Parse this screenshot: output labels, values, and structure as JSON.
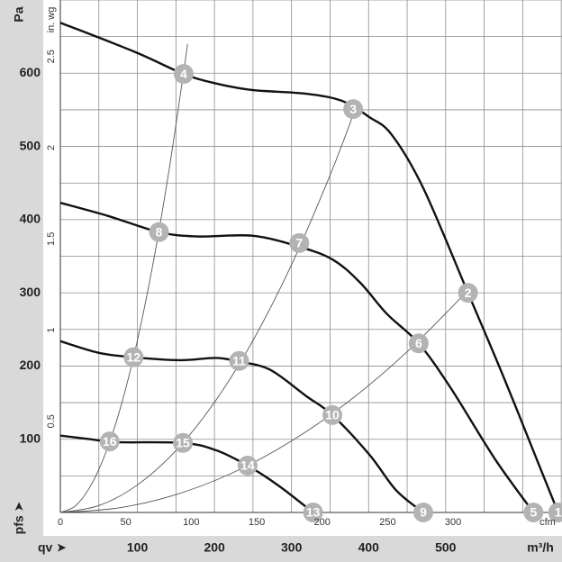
{
  "chart_data": {
    "type": "line",
    "y_label": "Pa",
    "y_symbol": "pfs ➤",
    "x_symbol": "qv ➤",
    "x_label": "m³/h",
    "y2_label": "in. wg",
    "x2_label": "cfm",
    "xlim": [
      0,
      651
    ],
    "ylim": [
      0,
      700
    ],
    "x2lim": [
      0,
      383.2
    ],
    "y2lim": [
      0,
      2.8102
    ],
    "xticks": [
      100,
      200,
      300,
      400,
      500
    ],
    "yticks": [
      100,
      200,
      300,
      400,
      500,
      600
    ],
    "x2ticks": [
      0,
      50,
      100,
      150,
      200,
      250,
      300
    ],
    "y2ticks": [
      0.5,
      1,
      1.5,
      2,
      2.5
    ],
    "xgrid": [
      0,
      50,
      100,
      150,
      200,
      250,
      300,
      350,
      400,
      450,
      500,
      550,
      600,
      650
    ],
    "ygrid": [
      0,
      50,
      100,
      150,
      200,
      250,
      300,
      350,
      400,
      450,
      500,
      550,
      600,
      650,
      700
    ],
    "grid": true,
    "fan_curves": [
      {
        "color": "#111111",
        "x": [
          0,
          97,
          160,
          202,
          249,
          319,
          366,
          401,
          430,
          471,
          529,
          576,
          623,
          646
        ],
        "y": [
          669,
          629,
          599,
          586,
          577,
          572,
          562,
          540,
          516,
          443,
          300,
          183,
          60,
          0
        ]
      },
      {
        "color": "#111111",
        "x": [
          0,
          62,
          128,
          179,
          249,
          310,
          354,
          389,
          424,
          465,
          506,
          564,
          614
        ],
        "y": [
          423,
          405,
          383,
          377,
          378,
          363,
          345,
          314,
          271,
          231,
          171,
          73,
          0
        ]
      },
      {
        "color": "#111111",
        "x": [
          0,
          50,
          95,
          155,
          202,
          232,
          272,
          319,
          353,
          401,
          436,
          471
        ],
        "y": [
          234,
          218,
          212,
          208,
          211,
          206,
          195,
          159,
          133,
          79,
          30,
          0
        ]
      },
      {
        "color": "#111111",
        "x": [
          0,
          39,
          74,
          159,
          202,
          243,
          284,
          328
        ],
        "y": [
          105,
          100,
          96,
          95,
          85,
          64,
          36,
          0
        ]
      }
    ],
    "system_curves": [
      {
        "color": "#555555",
        "x": [
          0,
          20,
          40,
          60,
          80,
          100,
          120,
          140,
          160,
          165
        ],
        "y": [
          0,
          9.4,
          37.6,
          84.6,
          150.4,
          235,
          338.4,
          460.6,
          601.6,
          640
        ]
      },
      {
        "color": "#555555",
        "x": [
          0,
          50,
          100,
          150,
          200,
          250,
          300,
          350,
          380
        ],
        "y": [
          0,
          9.4,
          37.6,
          84.6,
          150.4,
          235,
          338.4,
          460.6,
          543
        ]
      },
      {
        "color": "#555555",
        "x": [
          0,
          75,
          150,
          225,
          300,
          375,
          450,
          529
        ],
        "y": [
          0,
          6.1,
          24.4,
          54.9,
          97.6,
          152.4,
          219.5,
          303.3
        ]
      }
    ],
    "marker_color": "#b3b3b3",
    "markers": [
      {
        "label": "1",
        "x": 646,
        "y": 0
      },
      {
        "label": "2",
        "x": 529,
        "y": 300
      },
      {
        "label": "3",
        "x": 380,
        "y": 551
      },
      {
        "label": "4",
        "x": 160,
        "y": 599
      },
      {
        "label": "5",
        "x": 614,
        "y": 0
      },
      {
        "label": "6",
        "x": 465,
        "y": 231
      },
      {
        "label": "7",
        "x": 310,
        "y": 368
      },
      {
        "label": "8",
        "x": 128,
        "y": 383
      },
      {
        "label": "9",
        "x": 471,
        "y": 0
      },
      {
        "label": "10",
        "x": 353,
        "y": 133
      },
      {
        "label": "11",
        "x": 232,
        "y": 207
      },
      {
        "label": "12",
        "x": 95,
        "y": 212
      },
      {
        "label": "13",
        "x": 328,
        "y": 0
      },
      {
        "label": "14",
        "x": 243,
        "y": 64
      },
      {
        "label": "15",
        "x": 159,
        "y": 95
      },
      {
        "label": "16",
        "x": 64,
        "y": 97
      }
    ]
  }
}
